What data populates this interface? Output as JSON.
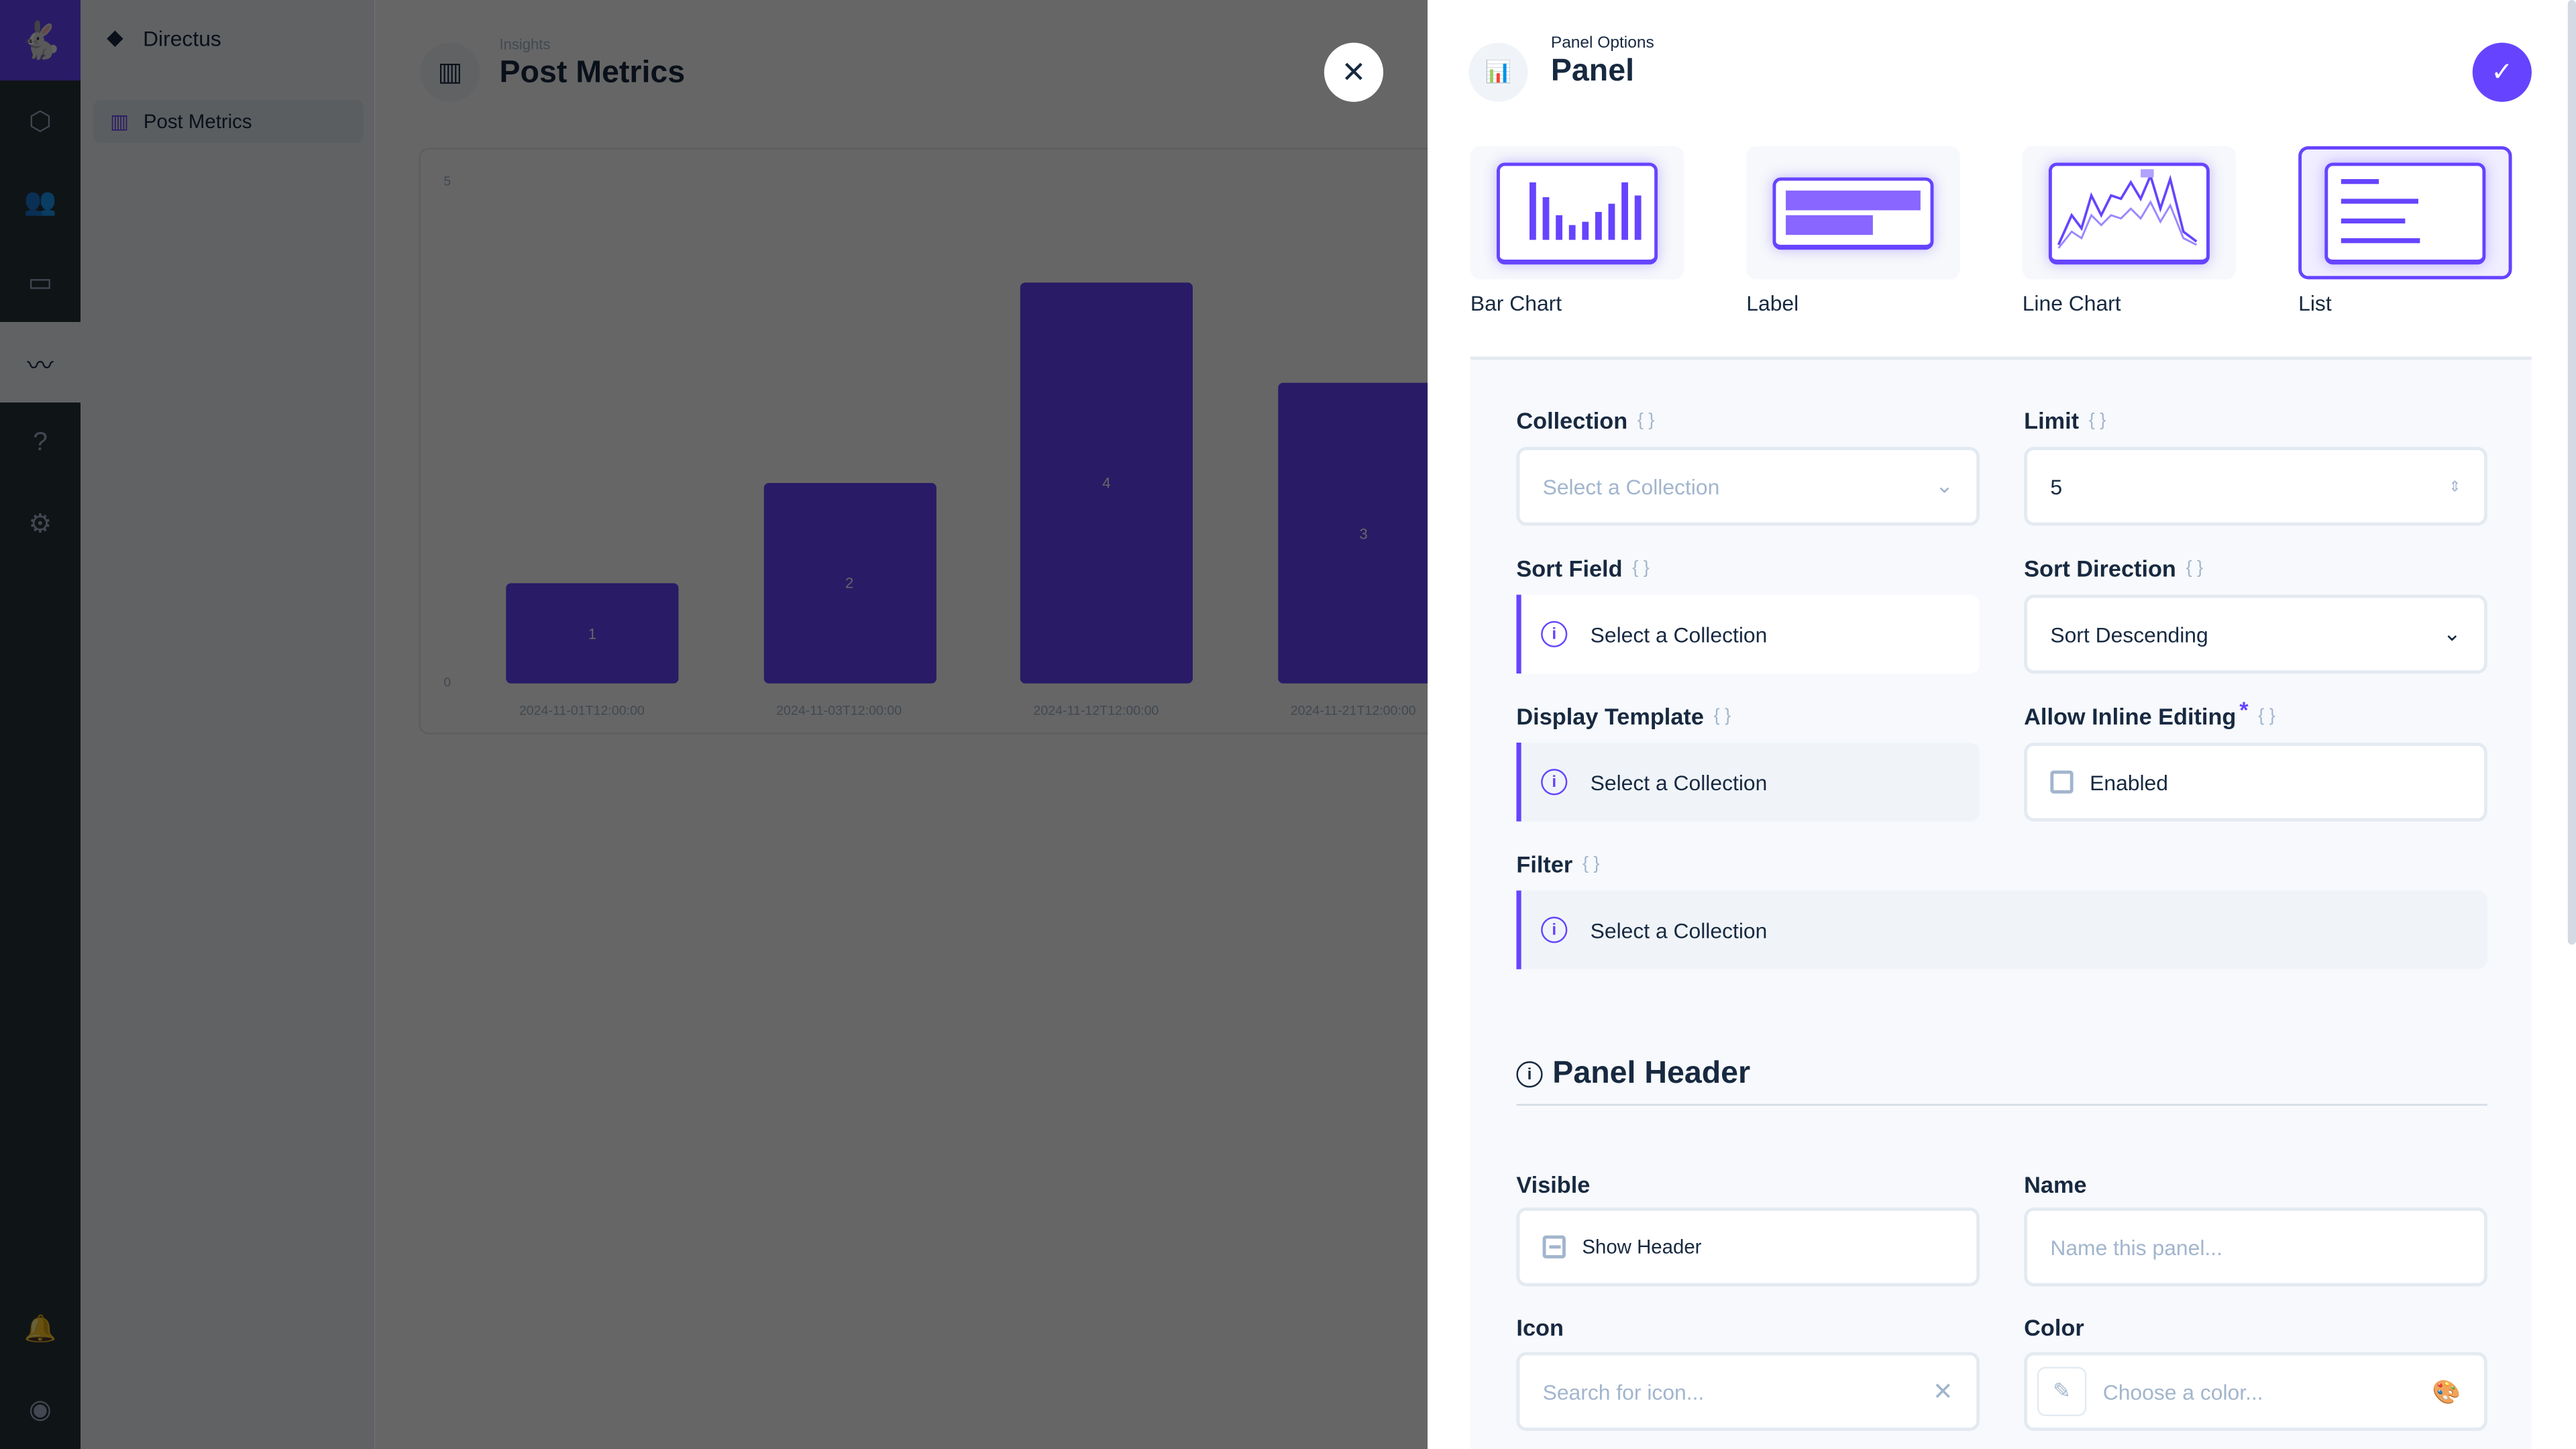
{
  "nav": {
    "project": "Directus",
    "items": [
      {
        "label": "Post Metrics"
      }
    ],
    "rail_icons": [
      "content-icon",
      "users-icon",
      "files-icon",
      "insights-icon",
      "help-icon",
      "settings-icon",
      "notifications-icon",
      "user-profile-icon"
    ],
    "active": "insights-icon"
  },
  "header": {
    "breadcrumb": "Insights",
    "title": "Post Metrics"
  },
  "chart_data": {
    "type": "bar",
    "categories": [
      "2024-11-01T12:00:00",
      "2024-11-03T12:00:00",
      "2024-11-12T12:00:00",
      "2024-11-21T12:00:00"
    ],
    "values": [
      1,
      2,
      4,
      3
    ],
    "ylim": [
      0,
      5
    ],
    "yticks": [
      "5",
      "0"
    ],
    "color": "#6644ff"
  },
  "drawer": {
    "subtitle": "Panel Options",
    "title": "Panel",
    "types": [
      {
        "label": "Bar Chart"
      },
      {
        "label": "Label"
      },
      {
        "label": "Line Chart"
      },
      {
        "label": "List",
        "selected": true
      }
    ],
    "fields": {
      "collection": {
        "label": "Collection",
        "placeholder": "Select a Collection"
      },
      "limit": {
        "label": "Limit",
        "value": "5"
      },
      "sort_field": {
        "label": "Sort Field",
        "notice": "Select a Collection"
      },
      "sort_direction": {
        "label": "Sort Direction",
        "value": "Sort Descending"
      },
      "display_template": {
        "label": "Display Template",
        "notice": "Select a Collection"
      },
      "inline_editing": {
        "label": "Allow Inline Editing",
        "required": "*",
        "checkbox": "Enabled",
        "checked": false
      },
      "filter": {
        "label": "Filter",
        "notice": "Select a Collection"
      }
    },
    "section": "Panel Header",
    "header_fields": {
      "visible": {
        "label": "Visible",
        "checkbox": "Show Header",
        "state": "indeterminate"
      },
      "name": {
        "label": "Name",
        "placeholder": "Name this panel..."
      },
      "icon": {
        "label": "Icon",
        "placeholder": "Search for icon..."
      },
      "color": {
        "label": "Color",
        "placeholder": "Choose a color..."
      }
    }
  },
  "colors": {
    "primary": "#6644ff",
    "text": "#172940"
  }
}
